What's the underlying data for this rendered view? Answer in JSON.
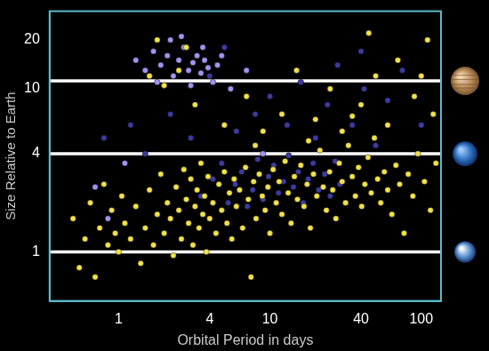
{
  "chart_data": {
    "type": "scatter",
    "x_label": "Orbital Period in days",
    "y_label": "Size Relative to Earth",
    "log": true,
    "grid": false,
    "xlim": [
      0.35,
      135
    ],
    "xticks": [
      1,
      4,
      10,
      40,
      100
    ],
    "ylim": [
      0.5,
      30
    ],
    "yticks": [
      1,
      4,
      10,
      20
    ],
    "series": [
      {
        "color": "#f2e24a",
        "marker": "circle",
        "x": [
          0.5,
          0.55,
          0.6,
          0.65,
          0.7,
          0.75,
          0.8,
          0.85,
          0.9,
          0.95,
          1.0,
          1.05,
          1.1,
          1.2,
          1.3,
          1.4,
          1.5,
          1.6,
          1.7,
          1.8,
          1.9,
          2.0,
          2.1,
          2.2,
          2.3,
          2.4,
          2.5,
          2.6,
          2.7,
          2.8,
          2.9,
          3.0,
          3.1,
          3.2,
          3.3,
          3.4,
          3.5,
          3.6,
          3.7,
          3.8,
          3.9,
          4.0,
          4.2,
          4.4,
          4.6,
          4.8,
          5.0,
          5.2,
          5.4,
          5.6,
          5.8,
          6.0,
          6.3,
          6.6,
          6.9,
          7.2,
          7.5,
          7.8,
          8.1,
          8.5,
          8.9,
          9.3,
          9.7,
          10,
          10.5,
          11,
          11.5,
          12,
          12.6,
          13.2,
          13.8,
          14.5,
          15.2,
          16,
          16.8,
          17.6,
          18.5,
          19.4,
          20.4,
          21.4,
          22.5,
          23.6,
          24.8,
          26,
          27.3,
          28.7,
          30,
          31.6,
          33,
          35,
          36.7,
          38.5,
          40.4,
          42.4,
          44.5,
          46.7,
          49,
          51.5,
          54,
          57,
          60,
          64,
          68,
          72,
          77,
          82,
          88,
          95,
          105,
          115,
          125,
          1.6,
          2.0,
          2.5,
          3.2,
          5,
          7,
          9,
          12,
          15,
          20,
          25,
          30,
          40,
          50,
          60,
          70,
          90,
          110,
          1.8,
          2.8,
          45,
          18,
          8,
          35,
          100,
          120
        ],
        "values": [
          1.6,
          0.8,
          1.2,
          2,
          0.7,
          1.4,
          2.6,
          1.1,
          1.8,
          1.3,
          1.0,
          2.2,
          1.5,
          1.2,
          1.9,
          0.85,
          1.4,
          2.4,
          1.1,
          1.7,
          3.0,
          1.3,
          2.0,
          1.6,
          0.95,
          2.5,
          1.8,
          1.2,
          3.2,
          2.1,
          1.5,
          2.8,
          1.1,
          1.9,
          2.4,
          1.4,
          3.5,
          1.7,
          2.2,
          1.0,
          2.9,
          1.6,
          2.0,
          1.3,
          2.6,
          1.8,
          3.1,
          1.5,
          2.3,
          1.2,
          2.8,
          1.9,
          2.4,
          1.4,
          3.3,
          2.1,
          0.7,
          2.7,
          1.6,
          3.0,
          2.2,
          1.8,
          2.5,
          1.3,
          3.2,
          2.0,
          2.7,
          1.7,
          3.6,
          2.3,
          1.5,
          2.9,
          2.1,
          3.4,
          1.9,
          2.6,
          1.4,
          3.0,
          2.2,
          4.2,
          2.5,
          1.8,
          3.1,
          2.4,
          1.6,
          3.5,
          2.7,
          2.0,
          4.5,
          2.9,
          2.2,
          3.3,
          1.9,
          2.6,
          3.8,
          2.3,
          5.0,
          2.8,
          2.0,
          3.1,
          2.4,
          1.7,
          3.4,
          2.6,
          1.3,
          3.0,
          2.2,
          4.0,
          2.7,
          1.8,
          3.5,
          12,
          10.5,
          13,
          8,
          6,
          9,
          5.5,
          7,
          13,
          6.5,
          10,
          5.5,
          8,
          12,
          6,
          15,
          9,
          20,
          20,
          18,
          22,
          4.8,
          4.5,
          6.8,
          12,
          7
        ]
      },
      {
        "color": "#3c3ca0",
        "marker": "circle",
        "x": [
          3.5,
          4.2,
          4.8,
          5.3,
          5.9,
          6.5,
          7.1,
          7.7,
          8.3,
          9,
          9.8,
          10.6,
          11.4,
          12.3,
          13.3,
          14.3,
          15.4,
          16.6,
          17.9,
          19.3,
          21,
          23,
          25,
          27,
          29,
          32,
          6,
          8,
          10,
          13,
          16,
          20,
          24,
          28,
          35,
          42,
          50,
          60,
          75,
          1.2,
          1.5,
          2.2,
          3,
          4,
          5,
          40,
          0.8,
          100
        ],
        "values": [
          2.2,
          2.8,
          3.5,
          2.0,
          2.6,
          3.1,
          1.9,
          2.4,
          3.7,
          2.1,
          2.9,
          3.4,
          2.3,
          2.7,
          3.9,
          2.5,
          3.1,
          2.0,
          2.8,
          3.5,
          2.4,
          3.0,
          2.2,
          3.6,
          2.6,
          2.0,
          5.5,
          7,
          9,
          6,
          11,
          5,
          8,
          14,
          6,
          10,
          4.5,
          8.5,
          13,
          6,
          4,
          7,
          5,
          12,
          18,
          17,
          5,
          6
        ]
      },
      {
        "color": "#a393f0",
        "marker": "circle",
        "x": [
          1.3,
          1.5,
          1.7,
          1.9,
          2.1,
          2.3,
          2.5,
          2.7,
          2.9,
          3.1,
          3.3,
          3.5,
          3.7,
          3.9,
          4.2,
          4.5,
          2.2,
          1.8,
          3.0,
          2.6,
          0.7,
          0.85,
          1.1,
          5.5,
          7,
          9,
          4.8,
          3.6
        ],
        "values": [
          15,
          13,
          17,
          14,
          16,
          12,
          15,
          18,
          13,
          14.5,
          16,
          12.5,
          15,
          13.5,
          11,
          14,
          20,
          11,
          10.5,
          21,
          2.5,
          1.6,
          3.5,
          10,
          13,
          4,
          16,
          18
        ]
      },
      {
        "type": "line",
        "color": "#ffffff",
        "x": [
          0.35,
          135
        ],
        "values": [
          11.2,
          11.2
        ]
      },
      {
        "type": "line",
        "color": "#ffffff",
        "x": [
          0.35,
          135
        ],
        "values": [
          4,
          4
        ]
      },
      {
        "type": "line",
        "color": "#ffffff",
        "x": [
          0.35,
          135
        ],
        "values": [
          1,
          1
        ]
      }
    ]
  }
}
